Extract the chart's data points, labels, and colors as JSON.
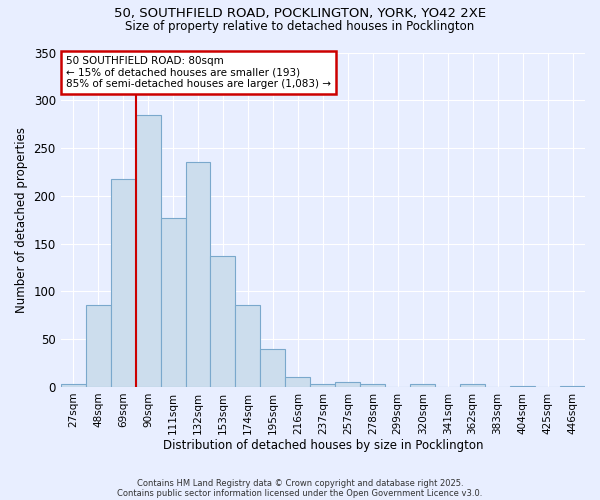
{
  "title_line1": "50, SOUTHFIELD ROAD, POCKLINGTON, YORK, YO42 2XE",
  "title_line2": "Size of property relative to detached houses in Pocklington",
  "xlabel": "Distribution of detached houses by size in Pocklington",
  "ylabel": "Number of detached properties",
  "categories": [
    "27sqm",
    "48sqm",
    "69sqm",
    "90sqm",
    "111sqm",
    "132sqm",
    "153sqm",
    "174sqm",
    "195sqm",
    "216sqm",
    "237sqm",
    "257sqm",
    "278sqm",
    "299sqm",
    "320sqm",
    "341sqm",
    "362sqm",
    "383sqm",
    "404sqm",
    "425sqm",
    "446sqm"
  ],
  "values": [
    3,
    86,
    218,
    285,
    177,
    235,
    137,
    86,
    40,
    10,
    3,
    5,
    3,
    0,
    3,
    0,
    3,
    0,
    1,
    0,
    1
  ],
  "bar_color": "#ccdded",
  "bar_edge_color": "#7aa8cc",
  "redline_x": 2.5,
  "annotation_text": "50 SOUTHFIELD ROAD: 80sqm\n← 15% of detached houses are smaller (193)\n85% of semi-detached houses are larger (1,083) →",
  "annotation_box_color": "#ffffff",
  "annotation_box_edge_color": "#cc0000",
  "redline_color": "#cc0000",
  "footnote_line1": "Contains HM Land Registry data © Crown copyright and database right 2025.",
  "footnote_line2": "Contains public sector information licensed under the Open Government Licence v3.0.",
  "bg_color": "#e8eeff",
  "plot_bg_color": "#e8eeff",
  "grid_color": "#ffffff",
  "ylim": [
    0,
    350
  ],
  "yticks": [
    0,
    50,
    100,
    150,
    200,
    250,
    300,
    350
  ]
}
